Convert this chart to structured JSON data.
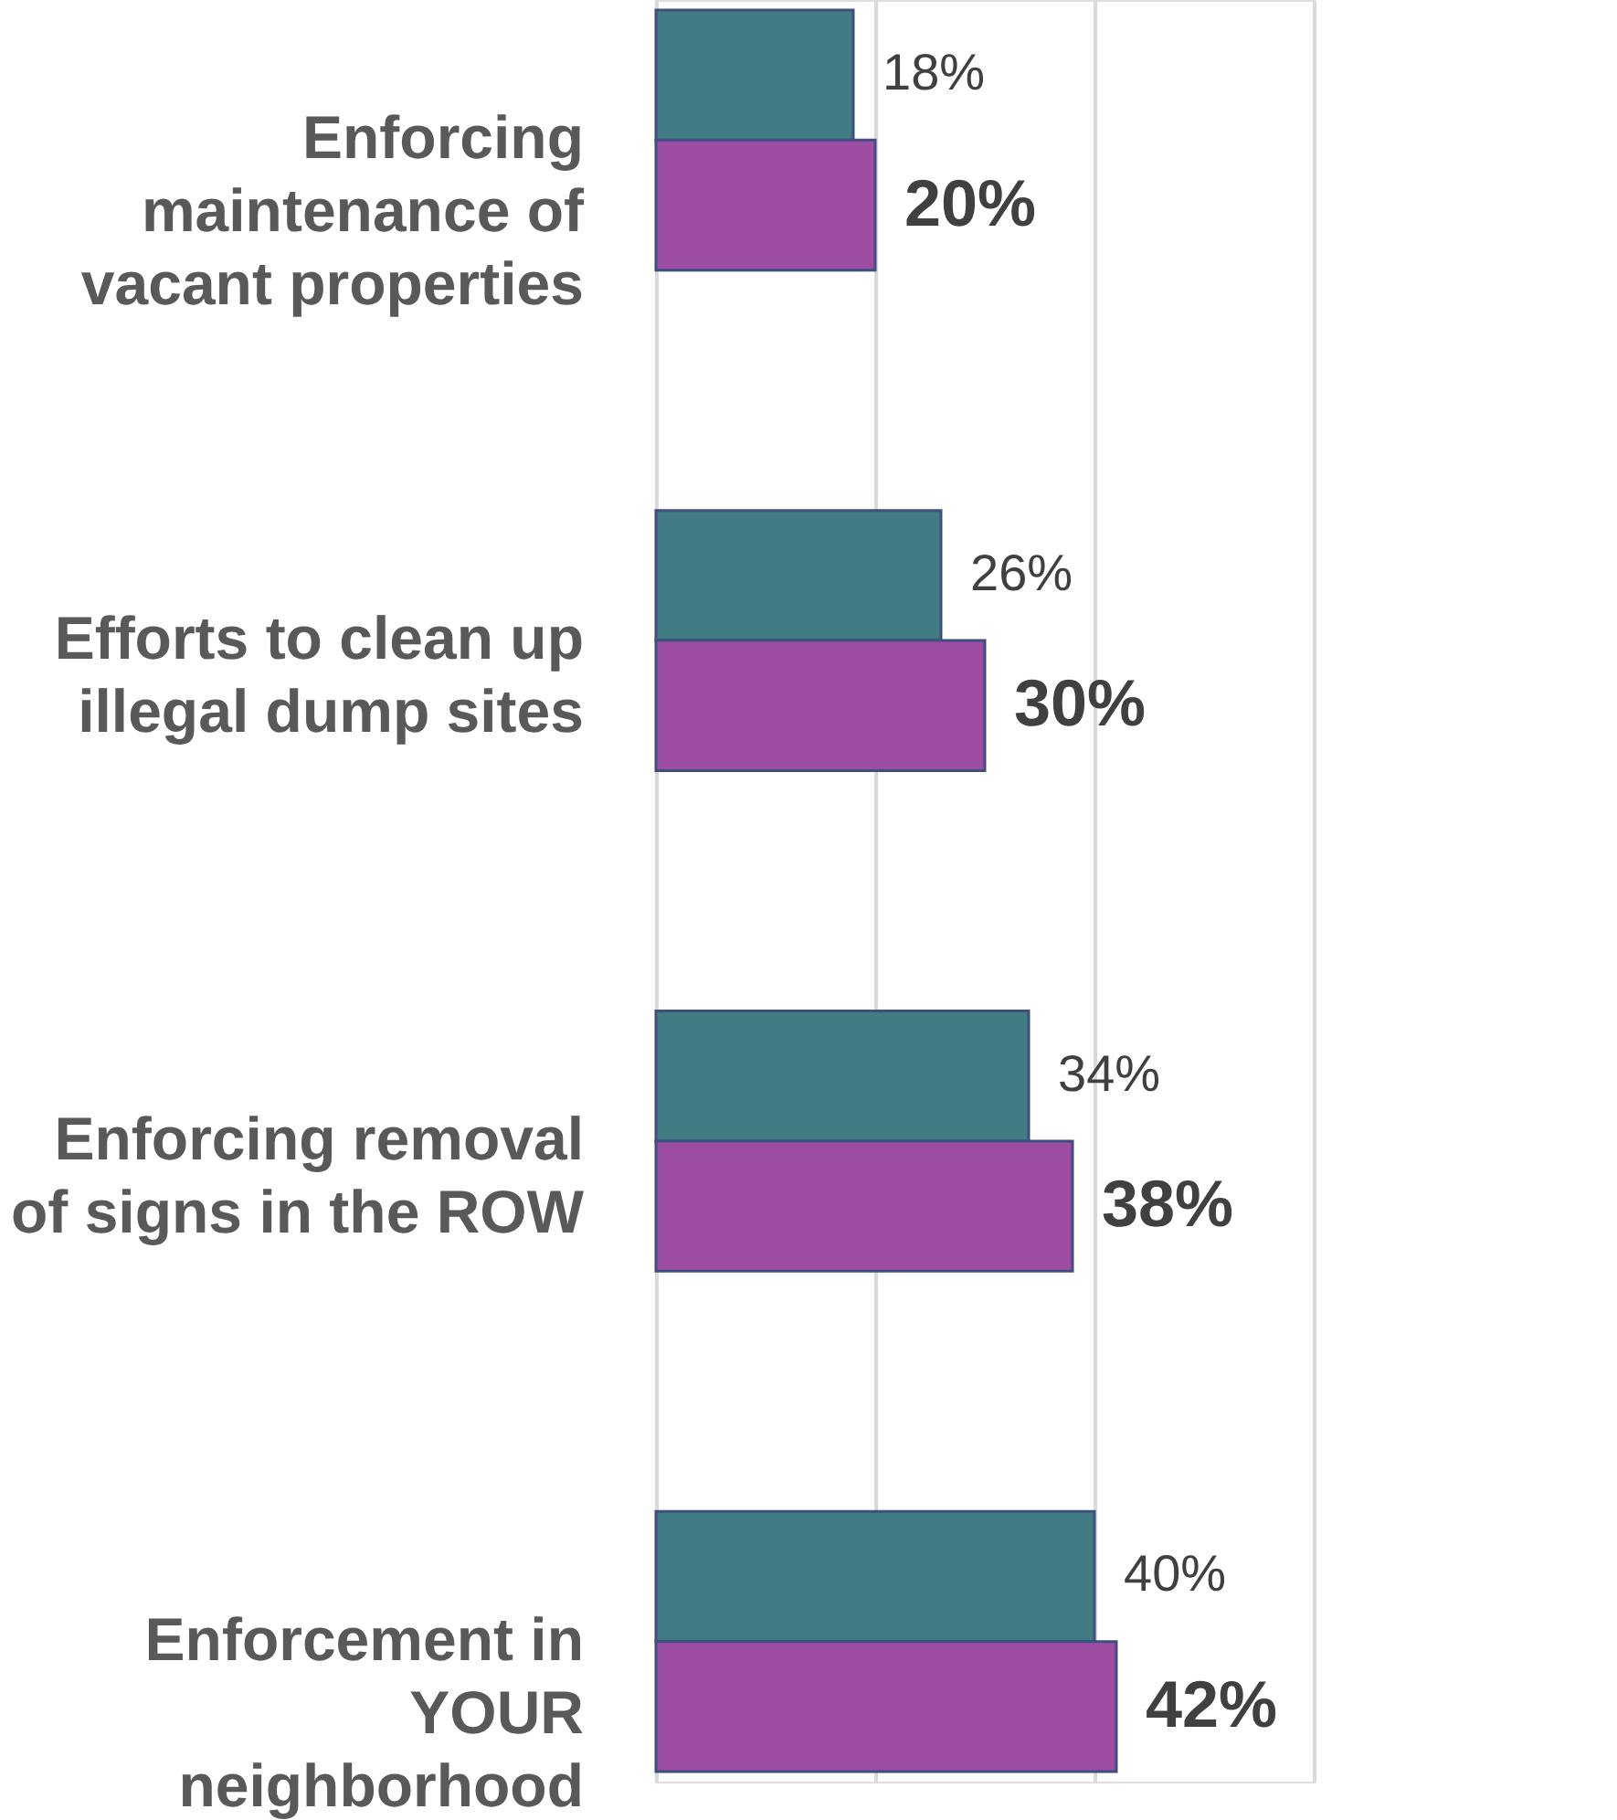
{
  "chart_data": {
    "type": "bar",
    "orientation": "horizontal",
    "categories": [
      "Enforcing\nmaintenance of\nvacant properties",
      "Efforts to clean up\nillegal dump sites",
      "Enforcing removal\nof signs in the ROW",
      "Enforcement in\nYOUR\nneighborhood"
    ],
    "series": [
      {
        "color": "#417c82",
        "values": [
          18,
          26,
          34,
          40
        ],
        "value_labels": [
          "18%",
          "26%",
          "34%",
          "40%"
        ]
      },
      {
        "color": "#9e4ea2",
        "values": [
          20,
          30,
          38,
          42
        ],
        "value_labels": [
          "20%",
          "30%",
          "38%",
          "42%"
        ]
      }
    ],
    "xlim": [
      0,
      60
    ],
    "xticks": [
      {
        "value": 0,
        "label": null
      },
      {
        "value": 20,
        "label": null
      },
      {
        "value": 40,
        "label": null
      },
      {
        "value": 60,
        "label": null
      }
    ],
    "grid": "x",
    "tick_labels": "y"
  }
}
